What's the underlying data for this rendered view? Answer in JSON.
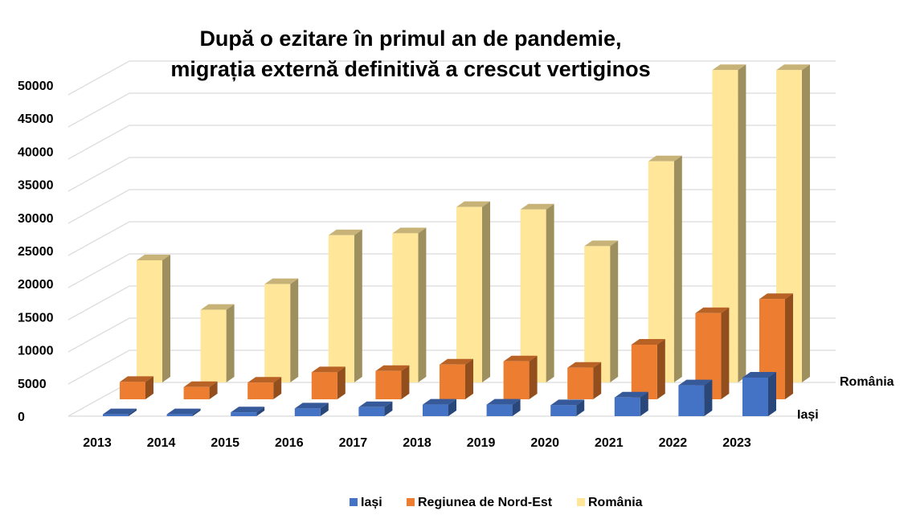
{
  "chart_data": {
    "type": "bar",
    "style": "3d-column",
    "title_lines": [
      "După o ezitare în primul an de pandemie,",
      "migrația externă definitivă a crescut vertiginos"
    ],
    "categories": [
      "2013",
      "2014",
      "2015",
      "2016",
      "2017",
      "2018",
      "2019",
      "2020",
      "2021",
      "2022",
      "2023"
    ],
    "series": [
      {
        "name": "Iași",
        "color": "#4472C4",
        "values": [
          300,
          300,
          600,
          1200,
          1400,
          1800,
          1800,
          1700,
          2900,
          4800,
          6000
        ]
      },
      {
        "name": "Regiunea de Nord-Est",
        "color": "#ED7D31",
        "values": [
          2700,
          1900,
          2600,
          4200,
          4400,
          5400,
          5900,
          4900,
          8500,
          13400,
          15600
        ]
      },
      {
        "name": "România",
        "color": "#FFE699",
        "values": [
          19000,
          11300,
          15300,
          22900,
          23200,
          27300,
          26900,
          21200,
          34400,
          48600,
          48600
        ]
      }
    ],
    "yticks": [
      0,
      5000,
      10000,
      15000,
      20000,
      25000,
      30000,
      35000,
      40000,
      45000,
      50000
    ],
    "ylim": [
      0,
      50000
    ],
    "depth_labels": [
      "România",
      "Iași"
    ],
    "grid": true,
    "legend_position": "bottom"
  }
}
